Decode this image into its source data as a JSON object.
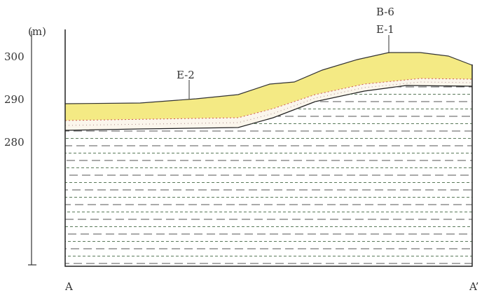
{
  "axis": {
    "unit": "(m)",
    "ticks": [
      "300",
      "290",
      "280"
    ]
  },
  "boreholes": [
    {
      "label": "E-2"
    },
    {
      "label": "B-6"
    },
    {
      "label": "E-1"
    }
  ],
  "section": {
    "start": "A",
    "end": "A’"
  }
}
